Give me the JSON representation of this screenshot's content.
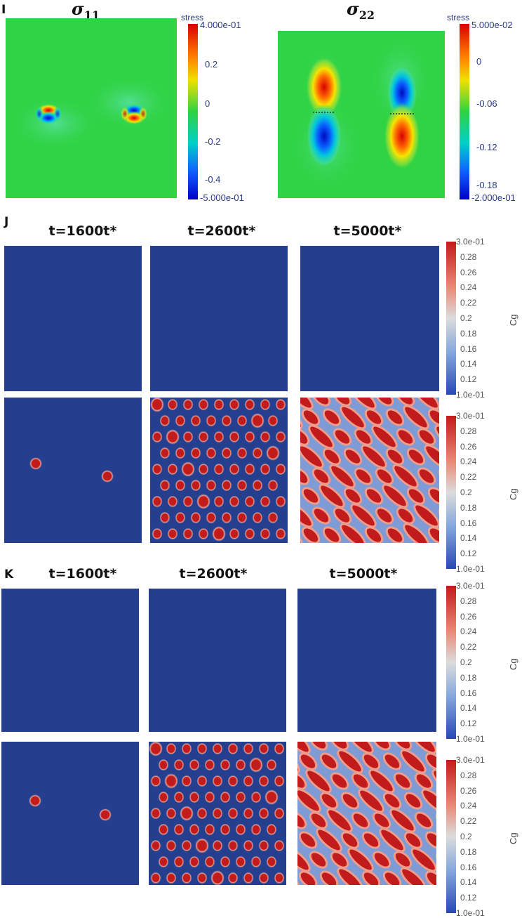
{
  "panel_I": {
    "letter": "I",
    "sigma11": {
      "symbol": "σ",
      "sub": "11"
    },
    "sigma22": {
      "symbol": "σ",
      "sub": "22"
    },
    "colorbar1": {
      "title": "stress",
      "ticks": [
        "4.000e-01",
        "0.2",
        "0",
        "-0.2",
        "-0.4",
        "-5.000e-01"
      ]
    },
    "colorbar2": {
      "title": "stress",
      "ticks": [
        "5.000e-02",
        "0",
        "-0.06",
        "-0.12",
        "-0.18",
        "-2.000e-01"
      ]
    }
  },
  "panel_J": {
    "letter": "J",
    "times": [
      "t=1600t*",
      "t=2600t*",
      "t=5000t*"
    ]
  },
  "panel_K": {
    "letter": "K",
    "times": [
      "t=1600t*",
      "t=2600t*",
      "t=5000t*"
    ]
  },
  "cg_colorbar": {
    "label": "Cg",
    "ticks": [
      "3.0e-01",
      "0.28",
      "0.26",
      "0.24",
      "0.22",
      "0.2",
      "0.18",
      "0.16",
      "0.14",
      "0.12",
      "1.0e-01"
    ]
  },
  "colors": {
    "background_blue": "#253f8e",
    "stress_green": "#2fd343",
    "precipitate_red": "#c11b1b"
  },
  "chart_data": [
    {
      "type": "heatmap",
      "title": "σ11",
      "colorbar_label": "stress",
      "range": [
        -0.5,
        0.4
      ],
      "dislocation_dipoles": [
        {
          "x": 0.29,
          "y": 0.45,
          "sign": "+"
        },
        {
          "x": 0.77,
          "y": 0.45,
          "sign": "-"
        }
      ]
    },
    {
      "type": "heatmap",
      "title": "σ22",
      "colorbar_label": "stress",
      "range": [
        -0.2,
        0.05
      ],
      "dislocation_dipoles": [
        {
          "x": 0.28,
          "y": 0.45,
          "sign": "+"
        },
        {
          "x": 0.73,
          "y": 0.46,
          "sign": "-"
        }
      ]
    },
    {
      "type": "heatmap",
      "panel": "J",
      "colorbar_label": "Cg",
      "range": [
        0.1,
        0.3
      ],
      "rows": [
        {
          "times": [
            "t=1600t*",
            "t=2600t*",
            "t=5000t*"
          ],
          "state": "uniform low"
        },
        {
          "times": [
            "t=1600t*",
            "t=2600t*",
            "t=5000t*"
          ],
          "state": "nucleation → precipitates → elongated"
        }
      ]
    },
    {
      "type": "heatmap",
      "panel": "K",
      "colorbar_label": "Cg",
      "range": [
        0.1,
        0.3
      ],
      "rows": [
        {
          "times": [
            "t=1600t*",
            "t=2600t*",
            "t=5000t*"
          ],
          "state": "uniform low"
        },
        {
          "times": [
            "t=1600t*",
            "t=2600t*",
            "t=5000t*"
          ],
          "state": "nucleation → precipitates → elongated"
        }
      ]
    }
  ]
}
